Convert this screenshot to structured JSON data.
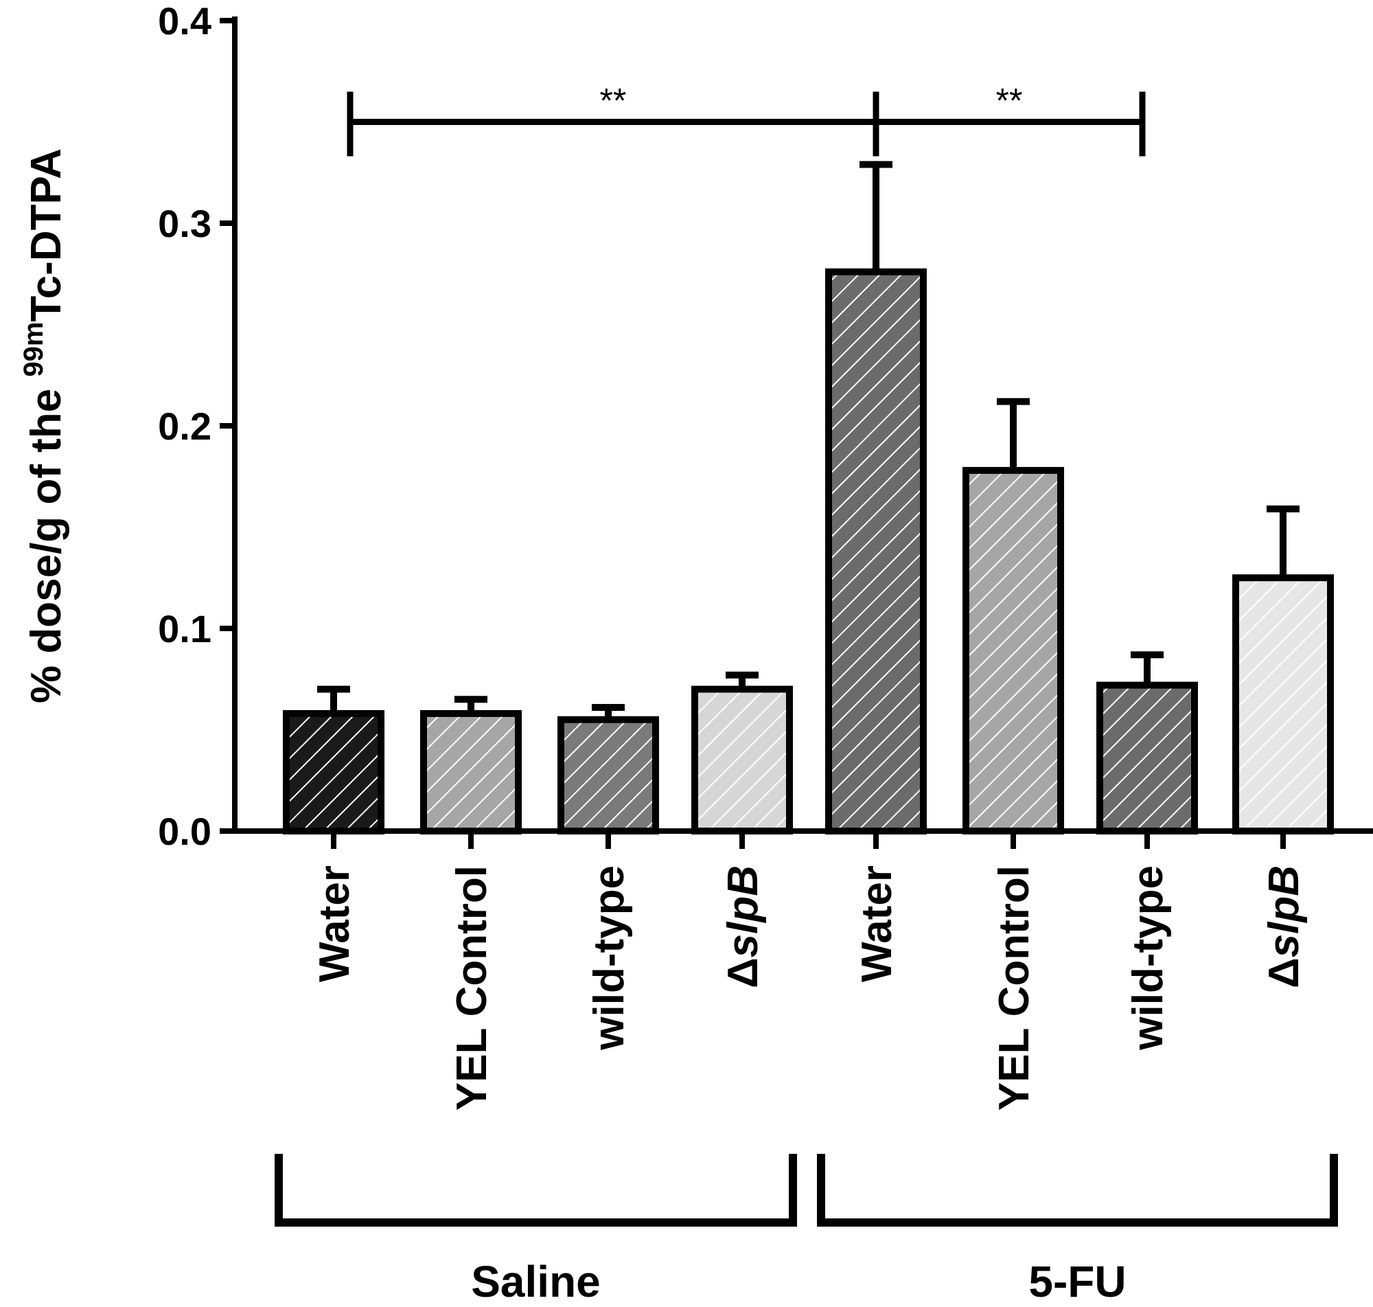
{
  "chart_data": {
    "type": "bar",
    "ylabel": {
      "prefix": "% dose/g of the ",
      "superscript": "99m",
      "suffix": "Tc-DTPA"
    },
    "ylim": [
      0,
      0.4
    ],
    "yticks": [
      {
        "value": 0.0,
        "label": "0.0"
      },
      {
        "value": 0.1,
        "label": "0.1"
      },
      {
        "value": 0.2,
        "label": "0.2"
      },
      {
        "value": 0.3,
        "label": "0.3"
      },
      {
        "value": 0.4,
        "label": "0.4"
      }
    ],
    "bars": [
      {
        "label": "Water",
        "prefix": "",
        "value": 0.058,
        "error": 0.012,
        "fill": "#1a1a1a",
        "group": "Saline"
      },
      {
        "label": "YEL Control",
        "prefix": "",
        "value": 0.058,
        "error": 0.007,
        "fill": "#a6a6a6",
        "group": "Saline"
      },
      {
        "label": "wild-type",
        "prefix": "",
        "value": 0.055,
        "error": 0.006,
        "fill": "#7a7a7a",
        "group": "Saline"
      },
      {
        "label": "slpB",
        "prefix": "Δ",
        "value": 0.07,
        "error": 0.007,
        "fill": "#d6d6d6",
        "group": "Saline"
      },
      {
        "label": "Water",
        "prefix": "",
        "value": 0.276,
        "error": 0.053,
        "fill": "#6b6b6b",
        "group": "5-FU"
      },
      {
        "label": "YEL Control",
        "prefix": "",
        "value": 0.178,
        "error": 0.034,
        "fill": "#a6a6a6",
        "group": "5-FU"
      },
      {
        "label": "wild-type",
        "prefix": "",
        "value": 0.072,
        "error": 0.015,
        "fill": "#6b6b6b",
        "group": "5-FU"
      },
      {
        "label": "slpB",
        "prefix": "Δ",
        "value": 0.125,
        "error": 0.034,
        "fill": "#e6e6e6",
        "group": "5-FU"
      }
    ],
    "groups": [
      {
        "name": "Saline",
        "from": 0,
        "to": 3
      },
      {
        "name": "5-FU",
        "from": 4,
        "to": 7
      }
    ],
    "significance": [
      {
        "from": 0,
        "to": 4,
        "y": 0.35,
        "label": "**"
      },
      {
        "from": 4,
        "to": 6,
        "y": 0.35,
        "label": "**"
      }
    ],
    "grid": false,
    "legend": "none"
  }
}
